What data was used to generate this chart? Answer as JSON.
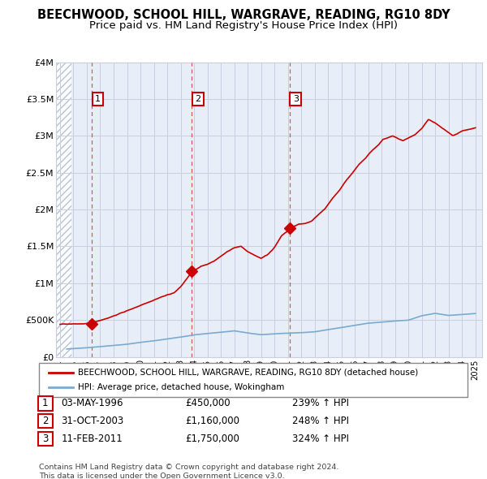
{
  "title": "BEECHWOOD, SCHOOL HILL, WARGRAVE, READING, RG10 8DY",
  "subtitle": "Price paid vs. HM Land Registry's House Price Index (HPI)",
  "title_fontsize": 10.5,
  "subtitle_fontsize": 9.5,
  "xlim": [
    1993.7,
    2025.5
  ],
  "ylim": [
    0,
    4000000
  ],
  "yticks": [
    0,
    500000,
    1000000,
    1500000,
    2000000,
    2500000,
    3000000,
    3500000,
    4000000
  ],
  "ytick_labels": [
    "£0",
    "£500K",
    "£1M",
    "£1.5M",
    "£2M",
    "£2.5M",
    "£3M",
    "£3.5M",
    "£4M"
  ],
  "xticks": [
    1994,
    1995,
    1996,
    1997,
    1998,
    1999,
    2000,
    2001,
    2002,
    2003,
    2004,
    2005,
    2006,
    2007,
    2008,
    2009,
    2010,
    2011,
    2012,
    2013,
    2014,
    2015,
    2016,
    2017,
    2018,
    2019,
    2020,
    2021,
    2022,
    2023,
    2024,
    2025
  ],
  "bg_color": "#e8eef8",
  "hatch_end": 1994.83,
  "grid_color": "#c8d0e0",
  "sale_points": [
    {
      "year": 1996.35,
      "price": 450000,
      "label": "1"
    },
    {
      "year": 2003.83,
      "price": 1160000,
      "label": "2"
    },
    {
      "year": 2011.12,
      "price": 1750000,
      "label": "3"
    }
  ],
  "sale_line_color": "#cc0000",
  "hpi_line_color": "#7aaad0",
  "vline_color": "#dd4444",
  "legend_label_sale": "BEECHWOOD, SCHOOL HILL, WARGRAVE, READING, RG10 8DY (detached house)",
  "legend_label_hpi": "HPI: Average price, detached house, Wokingham",
  "table_data": [
    {
      "num": "1",
      "date": "03-MAY-1996",
      "price": "£450,000",
      "hpi": "239% ↑ HPI"
    },
    {
      "num": "2",
      "date": "31-OCT-2003",
      "price": "£1,160,000",
      "hpi": "248% ↑ HPI"
    },
    {
      "num": "3",
      "date": "11-FEB-2011",
      "price": "£1,750,000",
      "hpi": "324% ↑ HPI"
    }
  ],
  "footer_text": "Contains HM Land Registry data © Crown copyright and database right 2024.\nThis data is licensed under the Open Government Licence v3.0."
}
